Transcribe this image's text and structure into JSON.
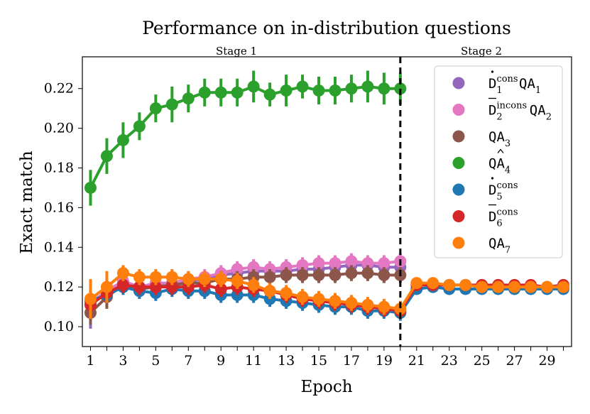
{
  "chart_data": {
    "type": "line",
    "title": "Performance on in-distribution questions",
    "xlabel": "Epoch",
    "ylabel": "Exact match",
    "xlim": [
      0.5,
      30.5
    ],
    "ylim": [
      0.09,
      0.236
    ],
    "xticks": [
      1,
      3,
      5,
      7,
      9,
      11,
      13,
      15,
      17,
      19,
      21,
      23,
      25,
      27,
      29
    ],
    "xtick_labels": [
      "1",
      "3",
      "5",
      "7",
      "9",
      "11",
      "13",
      "15",
      "17",
      "19",
      "21",
      "23",
      "25",
      "27",
      "29"
    ],
    "yticks": [
      0.1,
      0.12,
      0.14,
      0.16,
      0.18,
      0.2,
      0.22
    ],
    "ytick_labels": [
      "0.10",
      "0.12",
      "0.14",
      "0.16",
      "0.18",
      "0.20",
      "0.22"
    ],
    "stage_divider_x": 20,
    "stage_labels": [
      "Stage 1",
      "Stage 2"
    ],
    "legend_position": "top-right",
    "series": [
      {
        "name": "D1consQA1",
        "legend": {
          "base": "D",
          "accent": "dot",
          "sup": "cons",
          "sub": "1",
          "tail": "QA",
          "tail_sub": "1"
        },
        "color": "#9467bd",
        "x": [
          1,
          2,
          3,
          4,
          5,
          6,
          7,
          8,
          9,
          10,
          11,
          12,
          13,
          14,
          15,
          16,
          17,
          18,
          19,
          20
        ],
        "y": [
          0.111,
          0.117,
          0.122,
          0.119,
          0.121,
          0.121,
          0.123,
          0.124,
          0.126,
          0.127,
          0.128,
          0.128,
          0.128,
          0.129,
          0.129,
          0.13,
          0.131,
          0.131,
          0.13,
          0.13
        ],
        "err": [
          0.012,
          0.006,
          0.004,
          0.004,
          0.004,
          0.004,
          0.004,
          0.004,
          0.004,
          0.004,
          0.004,
          0.004,
          0.004,
          0.004,
          0.004,
          0.004,
          0.004,
          0.004,
          0.004,
          0.004
        ]
      },
      {
        "name": "D2inconsQA2",
        "legend": {
          "base": "D",
          "accent": "bar",
          "sup": "incons",
          "sub": "2",
          "tail": "QA",
          "tail_sub": "2"
        },
        "color": "#e377c2",
        "x": [
          1,
          2,
          3,
          4,
          5,
          6,
          7,
          8,
          9,
          10,
          11,
          12,
          13,
          14,
          15,
          16,
          17,
          18,
          19,
          20
        ],
        "y": [
          0.112,
          0.118,
          0.123,
          0.12,
          0.122,
          0.122,
          0.124,
          0.125,
          0.127,
          0.129,
          0.13,
          0.129,
          0.13,
          0.131,
          0.132,
          0.132,
          0.133,
          0.132,
          0.132,
          0.133
        ],
        "err": [
          0.01,
          0.006,
          0.004,
          0.004,
          0.004,
          0.004,
          0.004,
          0.004,
          0.004,
          0.004,
          0.004,
          0.004,
          0.004,
          0.004,
          0.004,
          0.004,
          0.004,
          0.004,
          0.004,
          0.004
        ]
      },
      {
        "name": "QA3",
        "legend": {
          "base": "QA",
          "accent": "",
          "sup": "",
          "sub": "3",
          "tail": "",
          "tail_sub": ""
        },
        "color": "#8c564b",
        "x": [
          1,
          2,
          3,
          4,
          5,
          6,
          7,
          8,
          9,
          10,
          11,
          12,
          13,
          14,
          15,
          16,
          17,
          18,
          19,
          20
        ],
        "y": [
          0.107,
          0.115,
          0.121,
          0.119,
          0.12,
          0.121,
          0.122,
          0.122,
          0.124,
          0.124,
          0.125,
          0.125,
          0.126,
          0.126,
          0.126,
          0.126,
          0.127,
          0.127,
          0.126,
          0.126
        ],
        "err": [
          0.006,
          0.006,
          0.004,
          0.004,
          0.004,
          0.004,
          0.004,
          0.004,
          0.004,
          0.004,
          0.004,
          0.004,
          0.004,
          0.004,
          0.004,
          0.004,
          0.004,
          0.004,
          0.004,
          0.004
        ]
      },
      {
        "name": "QA4hat",
        "legend": {
          "base": "QA",
          "accent": "hat",
          "sup": "",
          "sub": "4",
          "tail": "",
          "tail_sub": ""
        },
        "color": "#2ca02c",
        "x": [
          1,
          2,
          3,
          4,
          5,
          6,
          7,
          8,
          9,
          10,
          11,
          12,
          13,
          14,
          15,
          16,
          17,
          18,
          19,
          20
        ],
        "y": [
          0.17,
          0.186,
          0.194,
          0.201,
          0.21,
          0.212,
          0.215,
          0.218,
          0.218,
          0.218,
          0.221,
          0.217,
          0.219,
          0.221,
          0.219,
          0.219,
          0.22,
          0.221,
          0.22,
          0.22
        ],
        "err": [
          0.009,
          0.009,
          0.009,
          0.007,
          0.007,
          0.009,
          0.007,
          0.007,
          0.007,
          0.007,
          0.008,
          0.006,
          0.008,
          0.006,
          0.007,
          0.007,
          0.007,
          0.008,
          0.008,
          0.008
        ]
      },
      {
        "name": "D5cons",
        "legend": {
          "base": "D",
          "accent": "dot",
          "sup": "cons",
          "sub": "5",
          "tail": "",
          "tail_sub": ""
        },
        "color": "#1f77b4",
        "x": [
          1,
          2,
          3,
          4,
          5,
          6,
          7,
          8,
          9,
          10,
          11,
          12,
          13,
          14,
          15,
          16,
          17,
          18,
          19,
          20,
          21,
          22,
          23,
          24,
          25,
          26,
          27,
          28,
          29,
          30
        ],
        "y": [
          0.113,
          0.116,
          0.12,
          0.118,
          0.117,
          0.119,
          0.118,
          0.118,
          0.116,
          0.116,
          0.116,
          0.114,
          0.113,
          0.112,
          0.111,
          0.11,
          0.11,
          0.108,
          0.108,
          0.107,
          0.119,
          0.12,
          0.119,
          0.119,
          0.119,
          0.119,
          0.119,
          0.119,
          0.119,
          0.119
        ],
        "err": [
          0.005,
          0.004,
          0.004,
          0.004,
          0.004,
          0.004,
          0.004,
          0.004,
          0.004,
          0.004,
          0.004,
          0.004,
          0.004,
          0.004,
          0.004,
          0.004,
          0.004,
          0.004,
          0.004,
          0.004,
          0.002,
          0.002,
          0.002,
          0.002,
          0.002,
          0.002,
          0.002,
          0.002,
          0.002,
          0.002
        ]
      },
      {
        "name": "D6cons",
        "legend": {
          "base": "D",
          "accent": "bar",
          "sup": "cons",
          "sub": "6",
          "tail": "",
          "tail_sub": ""
        },
        "color": "#d62728",
        "x": [
          1,
          2,
          3,
          4,
          5,
          6,
          7,
          8,
          9,
          10,
          11,
          12,
          13,
          14,
          15,
          16,
          17,
          18,
          19,
          20,
          21,
          22,
          23,
          24,
          25,
          26,
          27,
          28,
          29,
          30
        ],
        "y": [
          0.111,
          0.117,
          0.121,
          0.12,
          0.12,
          0.12,
          0.12,
          0.121,
          0.119,
          0.12,
          0.119,
          0.118,
          0.116,
          0.114,
          0.113,
          0.112,
          0.111,
          0.11,
          0.109,
          0.108,
          0.121,
          0.121,
          0.121,
          0.121,
          0.121,
          0.121,
          0.121,
          0.121,
          0.12,
          0.121
        ],
        "err": [
          0.006,
          0.005,
          0.004,
          0.004,
          0.004,
          0.004,
          0.004,
          0.004,
          0.004,
          0.004,
          0.004,
          0.004,
          0.004,
          0.004,
          0.004,
          0.004,
          0.004,
          0.004,
          0.004,
          0.004,
          0.002,
          0.002,
          0.002,
          0.002,
          0.002,
          0.002,
          0.002,
          0.002,
          0.002,
          0.002
        ]
      },
      {
        "name": "QA7",
        "legend": {
          "base": "QA",
          "accent": "",
          "sup": "",
          "sub": "7",
          "tail": "",
          "tail_sub": ""
        },
        "color": "#ff7f0e",
        "x": [
          1,
          2,
          3,
          4,
          5,
          6,
          7,
          8,
          9,
          10,
          11,
          12,
          13,
          14,
          15,
          16,
          17,
          18,
          19,
          20,
          21,
          22,
          23,
          24,
          25,
          26,
          27,
          28,
          29,
          30
        ],
        "y": [
          0.114,
          0.12,
          0.127,
          0.125,
          0.125,
          0.125,
          0.124,
          0.124,
          0.124,
          0.123,
          0.121,
          0.118,
          0.117,
          0.115,
          0.114,
          0.113,
          0.112,
          0.111,
          0.11,
          0.109,
          0.122,
          0.122,
          0.121,
          0.121,
          0.12,
          0.12,
          0.12,
          0.12,
          0.12,
          0.12
        ],
        "err": [
          0.01,
          0.008,
          0.004,
          0.004,
          0.004,
          0.004,
          0.004,
          0.004,
          0.004,
          0.004,
          0.004,
          0.004,
          0.004,
          0.004,
          0.004,
          0.004,
          0.004,
          0.004,
          0.004,
          0.004,
          0.002,
          0.002,
          0.002,
          0.002,
          0.002,
          0.002,
          0.002,
          0.002,
          0.002,
          0.002
        ]
      }
    ]
  }
}
